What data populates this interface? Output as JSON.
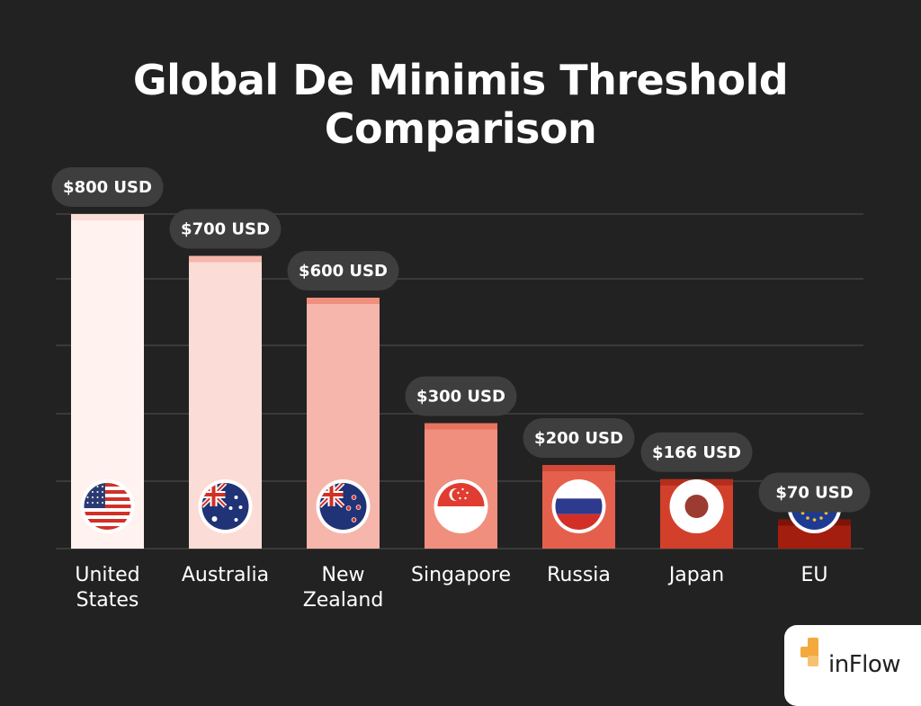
{
  "chart_data": {
    "type": "bar",
    "title_line1": "Global De Minimis Threshold",
    "title_line2": "Comparison",
    "categories": [
      {
        "label_lines": [
          "United",
          "States"
        ],
        "flag": "us-flag-icon"
      },
      {
        "label_lines": [
          "Australia"
        ],
        "flag": "australia-flag-icon"
      },
      {
        "label_lines": [
          "New",
          "Zealand"
        ],
        "flag": "new-zealand-flag-icon"
      },
      {
        "label_lines": [
          "Singapore"
        ],
        "flag": "singapore-flag-icon"
      },
      {
        "label_lines": [
          "Russia"
        ],
        "flag": "russia-flag-icon"
      },
      {
        "label_lines": [
          "Japan"
        ],
        "flag": "japan-flag-icon"
      },
      {
        "label_lines": [
          "EU"
        ],
        "flag": "eu-flag-icon"
      }
    ],
    "values": [
      800,
      700,
      600,
      300,
      200,
      166,
      70
    ],
    "value_labels": [
      "$800 USD",
      "$700 USD",
      "$600 USD",
      "$300 USD",
      "$200 USD",
      "$166 USD",
      "$70 USD"
    ],
    "unit": "USD",
    "grid": true,
    "legend": "none",
    "bar_colors": [
      "#fff2ef",
      "#fcdcd6",
      "#f6b6ab",
      "#f08f7e",
      "#e5604c",
      "#d2402b",
      "#a41e10"
    ],
    "bar_cap_colors": [
      "#fcdcd6",
      "#f6b6ab",
      "#f08f7e",
      "#e87361",
      "#d24a37",
      "#b42e1d",
      "#7e1409"
    ],
    "background": "#232222"
  },
  "brand": {
    "name": "inFlow",
    "accent": "#f4a93f"
  }
}
